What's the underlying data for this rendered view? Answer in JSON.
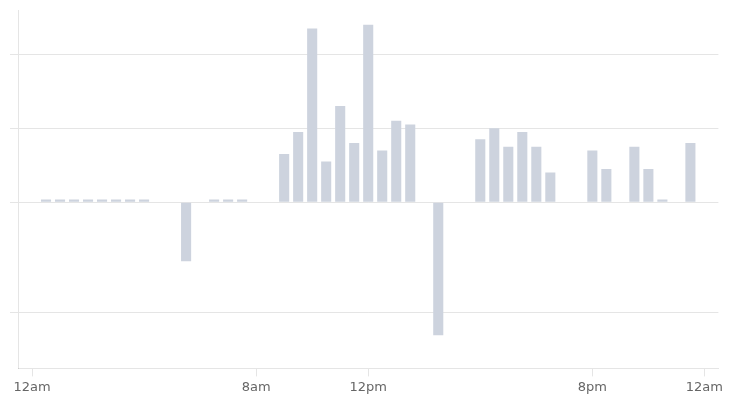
{
  "chart_data": {
    "type": "bar",
    "x": [
      0.5,
      1.0,
      1.5,
      2.0,
      2.5,
      3.0,
      3.5,
      4.0,
      5.5,
      6.5,
      7.0,
      7.5,
      9.0,
      9.5,
      10.0,
      10.5,
      11.0,
      11.5,
      12.0,
      12.5,
      13.0,
      13.5,
      14.5,
      16.0,
      16.5,
      17.0,
      17.5,
      18.0,
      18.5,
      20.0,
      20.5,
      21.5,
      22.0,
      22.5,
      23.5
    ],
    "values": [
      0.07,
      0.07,
      0.07,
      0.07,
      0.07,
      0.07,
      0.07,
      0.07,
      -1.6,
      0.07,
      0.07,
      0.07,
      1.3,
      1.9,
      4.7,
      1.1,
      2.6,
      1.6,
      4.8,
      1.4,
      2.2,
      2.1,
      -3.6,
      1.7,
      2.0,
      1.5,
      1.9,
      1.5,
      0.8,
      1.4,
      0.9,
      1.5,
      0.9,
      0.07,
      1.6
    ],
    "color": "#cdd3de",
    "xlim": [
      -0.5,
      24.5
    ],
    "xticks": [
      {
        "value": 0,
        "label": "12am"
      },
      {
        "value": 8,
        "label": "8am"
      },
      {
        "value": 12,
        "label": "12pm"
      },
      {
        "value": 20,
        "label": "8pm"
      },
      {
        "value": 24,
        "label": "12am"
      }
    ],
    "ylim": [
      -4.5,
      5.2
    ],
    "yticks": [
      4.0,
      2.0,
      0.0,
      -3.0
    ],
    "grid": true,
    "tick_labels": "x"
  }
}
